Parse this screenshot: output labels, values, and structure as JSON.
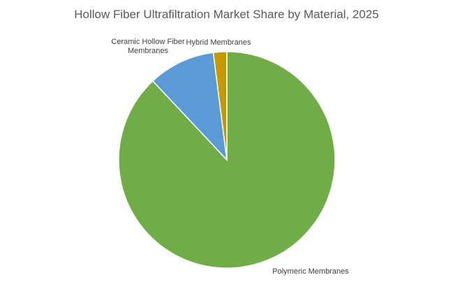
{
  "chart_data": {
    "type": "pie",
    "title": "Hollow Fiber Ultrafiltration Market Share by Material, 2025",
    "categories": [
      "Polymeric Membranes",
      "Ceramic Hollow Fiber Membranes",
      "Hybrid Membranes"
    ],
    "values": [
      88,
      10,
      2
    ],
    "colors": [
      "#70ad47",
      "#5b9bd5",
      "#c49a00"
    ],
    "legend": "none"
  }
}
